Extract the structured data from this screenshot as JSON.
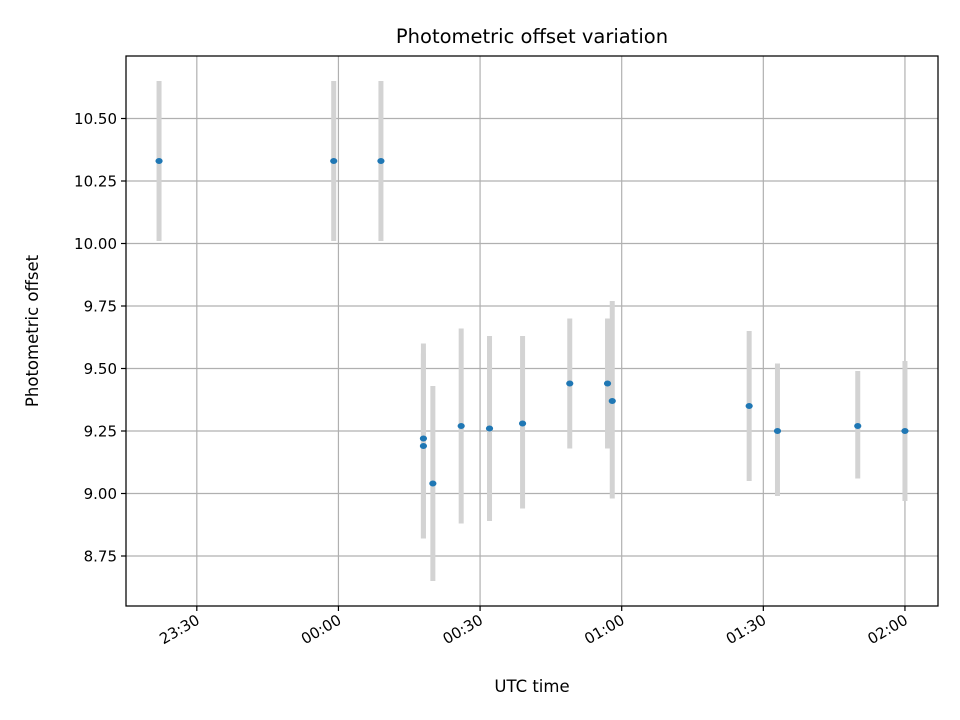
{
  "chart_data": {
    "type": "scatter",
    "title": "Photometric offset variation",
    "xlabel": "UTC time",
    "ylabel": "Photometric offset",
    "grid": true,
    "x_ticks": [
      "23:30",
      "00:00",
      "00:30",
      "01:00",
      "01:30",
      "02:00"
    ],
    "y_ticks": [
      "8.75",
      "9.00",
      "9.25",
      "9.50",
      "9.75",
      "10.00",
      "10.25",
      "10.50"
    ],
    "point_color": "#1f77b4",
    "errorbar_color": "#d3d3d3",
    "points": [
      {
        "time": "23:22",
        "y": 10.33,
        "ylow": 10.01,
        "yhigh": 10.65
      },
      {
        "time": "23:59",
        "y": 10.33,
        "ylow": 10.01,
        "yhigh": 10.65
      },
      {
        "time": "00:09",
        "y": 10.33,
        "ylow": 10.01,
        "yhigh": 10.65
      },
      {
        "time": "00:18",
        "y": 9.22,
        "ylow": 8.82,
        "yhigh": 9.6
      },
      {
        "time": "00:18",
        "y": 9.19,
        "ylow": 8.82,
        "yhigh": 9.56
      },
      {
        "time": "00:20",
        "y": 9.04,
        "ylow": 8.65,
        "yhigh": 9.43
      },
      {
        "time": "00:26",
        "y": 9.27,
        "ylow": 8.88,
        "yhigh": 9.66
      },
      {
        "time": "00:32",
        "y": 9.26,
        "ylow": 8.89,
        "yhigh": 9.63
      },
      {
        "time": "00:39",
        "y": 9.28,
        "ylow": 8.94,
        "yhigh": 9.63
      },
      {
        "time": "00:49",
        "y": 9.44,
        "ylow": 9.18,
        "yhigh": 9.7
      },
      {
        "time": "00:57",
        "y": 9.44,
        "ylow": 9.18,
        "yhigh": 9.7
      },
      {
        "time": "00:58",
        "y": 9.37,
        "ylow": 8.98,
        "yhigh": 9.77
      },
      {
        "time": "01:27",
        "y": 9.35,
        "ylow": 9.05,
        "yhigh": 9.65
      },
      {
        "time": "01:33",
        "y": 9.25,
        "ylow": 8.99,
        "yhigh": 9.52
      },
      {
        "time": "01:50",
        "y": 9.27,
        "ylow": 9.06,
        "yhigh": 9.49
      },
      {
        "time": "02:00",
        "y": 9.25,
        "ylow": 8.97,
        "yhigh": 9.53
      }
    ]
  }
}
